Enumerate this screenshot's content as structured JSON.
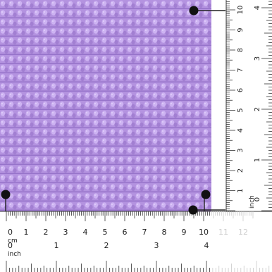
{
  "photo": {
    "subject": "crochet swatch",
    "swatch_color": "#b493e0",
    "rule_line_color": "#222222"
  },
  "bottom_ruler": {
    "cm_unit": "cm",
    "cm_numbers": [
      "0",
      "1",
      "2",
      "3",
      "4",
      "5",
      "6",
      "7",
      "8",
      "9",
      "10"
    ],
    "faded_cm_numbers": [
      "11",
      "12"
    ],
    "inch_unit": "inch",
    "inch_numbers": [
      "0",
      "1",
      "2",
      "3",
      "4"
    ]
  },
  "right_ruler": {
    "cm_numbers": [
      "10",
      "9",
      "8",
      "7",
      "6",
      "5",
      "4",
      "3",
      "2",
      "1"
    ],
    "inch_unit": "inch",
    "inch_numbers": [
      "0",
      "1",
      "2",
      "3",
      "4"
    ]
  }
}
